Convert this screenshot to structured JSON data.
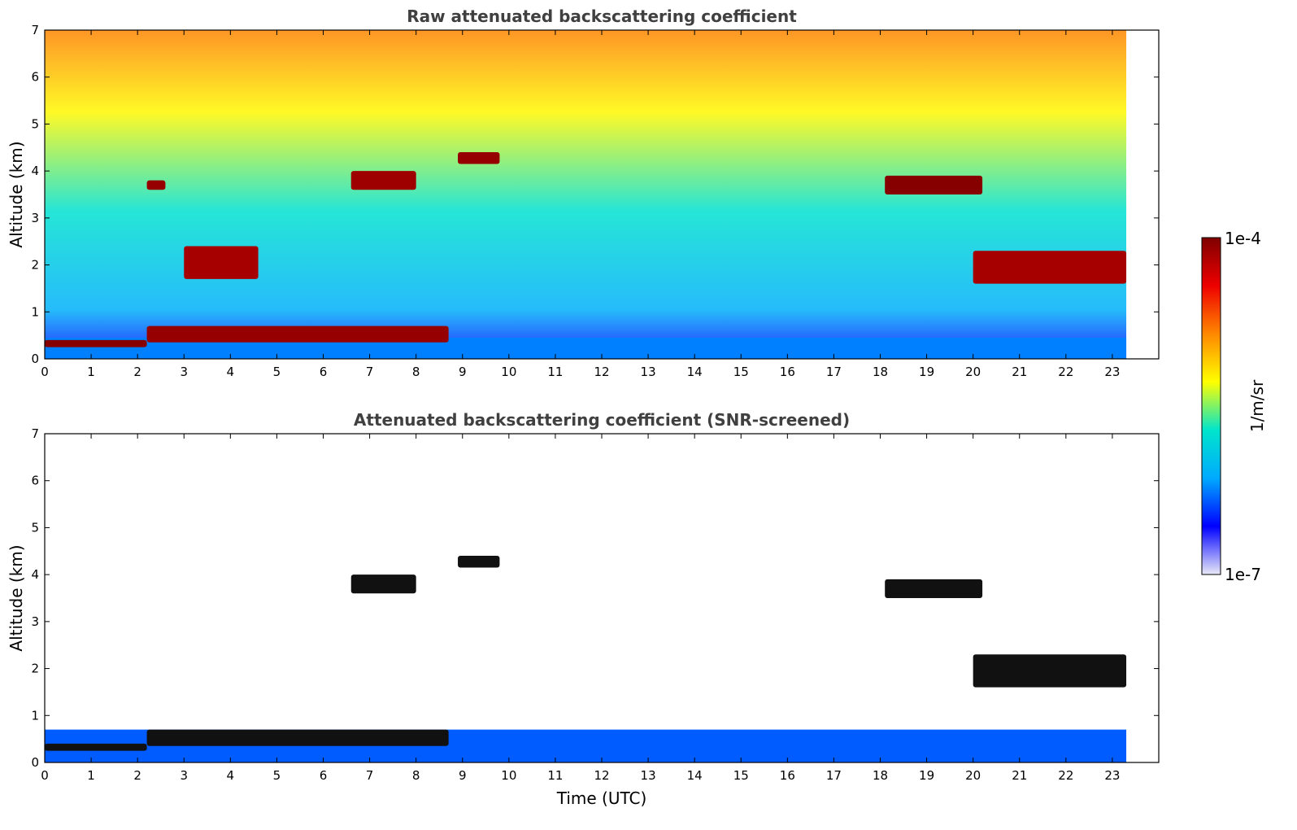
{
  "chart_data": [
    {
      "type": "heatmap",
      "title": "Raw attenuated backscattering coefficient",
      "ylabel": "Altitude (km)",
      "xlabel": "",
      "xlim": [
        0,
        24
      ],
      "ylim": [
        0,
        7
      ],
      "data_x_range": [
        0,
        23.3
      ],
      "xticks": [
        0,
        1,
        2,
        3,
        4,
        5,
        6,
        7,
        8,
        9,
        10,
        11,
        12,
        13,
        14,
        15,
        16,
        17,
        18,
        19,
        20,
        21,
        22,
        23
      ],
      "yticks": [
        0,
        1,
        2,
        3,
        4,
        5,
        6,
        7
      ],
      "grid": false,
      "layers": [
        {
          "t_start": 0.0,
          "t_end": 23.3,
          "alt_bottom": 0.0,
          "alt_top": 0.45,
          "level": 0.25
        },
        {
          "t_start": 0.0,
          "t_end": 2.2,
          "alt_bottom": 0.25,
          "alt_top": 0.4,
          "level": 0.99
        },
        {
          "t_start": 2.2,
          "t_end": 8.7,
          "alt_bottom": 0.35,
          "alt_top": 0.7,
          "level": 0.97
        },
        {
          "t_start": 8.9,
          "t_end": 9.8,
          "alt_bottom": 4.15,
          "alt_top": 4.4,
          "level": 0.97
        },
        {
          "t_start": 6.6,
          "t_end": 8.0,
          "alt_bottom": 3.6,
          "alt_top": 4.0,
          "level": 0.96
        },
        {
          "t_start": 2.2,
          "t_end": 2.6,
          "alt_bottom": 3.6,
          "alt_top": 3.8,
          "level": 0.97
        },
        {
          "t_start": 3.0,
          "t_end": 4.6,
          "alt_bottom": 1.7,
          "alt_top": 2.4,
          "level": 0.95
        },
        {
          "t_start": 18.1,
          "t_end": 20.2,
          "alt_bottom": 3.5,
          "alt_top": 3.9,
          "level": 0.99
        },
        {
          "t_start": 20.0,
          "t_end": 23.3,
          "alt_bottom": 1.6,
          "alt_top": 2.3,
          "level": 0.95
        }
      ]
    },
    {
      "type": "heatmap",
      "title": "Attenuated backscattering coefficient (SNR-screened)",
      "ylabel": "Altitude (km)",
      "xlabel": "Time (UTC)",
      "xlim": [
        0,
        24
      ],
      "ylim": [
        0,
        7
      ],
      "data_x_range": [
        0,
        23.3
      ],
      "xticks": [
        0,
        1,
        2,
        3,
        4,
        5,
        6,
        7,
        8,
        9,
        10,
        11,
        12,
        13,
        14,
        15,
        16,
        17,
        18,
        19,
        20,
        21,
        22,
        23
      ],
      "yticks": [
        0,
        1,
        2,
        3,
        4,
        5,
        6,
        7
      ],
      "grid": false,
      "layers": [
        {
          "t_start": 0.0,
          "t_end": 23.3,
          "alt_bottom": 0.0,
          "alt_top": 0.7,
          "level": 0.22
        },
        {
          "t_start": 0.0,
          "t_end": 2.2,
          "alt_bottom": 0.25,
          "alt_top": 0.4,
          "level": 1.0
        },
        {
          "t_start": 2.2,
          "t_end": 8.7,
          "alt_bottom": 0.35,
          "alt_top": 0.7,
          "level": 1.0
        },
        {
          "t_start": 8.9,
          "t_end": 9.8,
          "alt_bottom": 4.15,
          "alt_top": 4.4,
          "level": 1.0
        },
        {
          "t_start": 6.6,
          "t_end": 8.0,
          "alt_bottom": 3.6,
          "alt_top": 4.0,
          "level": 1.0
        },
        {
          "t_start": 18.1,
          "t_end": 20.2,
          "alt_bottom": 3.5,
          "alt_top": 3.9,
          "level": 1.0
        },
        {
          "t_start": 20.0,
          "t_end": 23.3,
          "alt_bottom": 1.6,
          "alt_top": 2.3,
          "level": 1.0
        }
      ]
    }
  ],
  "colorbar": {
    "label": "1/m/sr",
    "max_label": "1e-4",
    "min_label": "1e-7",
    "colormap": "jet",
    "stops": [
      "#eaeaf8",
      "#0000ff",
      "#00aaff",
      "#00e5cc",
      "#ffff00",
      "#ff8800",
      "#ee0000",
      "#7f0000"
    ]
  }
}
